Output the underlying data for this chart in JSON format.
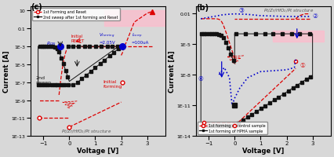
{
  "fig_width": 4.26,
  "fig_height": 2.01,
  "dpi": 100,
  "bg_color": "#d8d8d8",
  "subplot_c": {
    "label": "(c)",
    "xlabel": "Voltage [V]",
    "ylabel": "Current [A]",
    "xlim": [
      -1.5,
      3.7
    ],
    "ylim": [
      1e-13,
      30
    ],
    "xticks": [
      -1,
      0,
      1,
      2,
      3
    ],
    "legend1": "1st Forming and Reset",
    "legend2": "2nd sweep after 1st forming and Reset",
    "color_red": "#dd0000",
    "color_black": "#111111",
    "color_blue": "#0000cc",
    "color_pink": "#ffbbcc"
  },
  "subplot_b": {
    "label": "(b)",
    "xlabel": "Voltage [V]",
    "ylabel": "Current [A]",
    "xlim": [
      -1.5,
      3.7
    ],
    "ylim": [
      1e-14,
      0.05
    ],
    "xticks": [
      -1,
      0,
      1,
      2,
      3
    ],
    "legend1": "1st forming of control sample",
    "legend2": "1st forming of HPHA sample",
    "annotation_structure": "Pt/Zr/HfO₂/Pt structure",
    "color_red": "#dd0000",
    "color_black": "#111111",
    "color_blue": "#0000cc"
  }
}
